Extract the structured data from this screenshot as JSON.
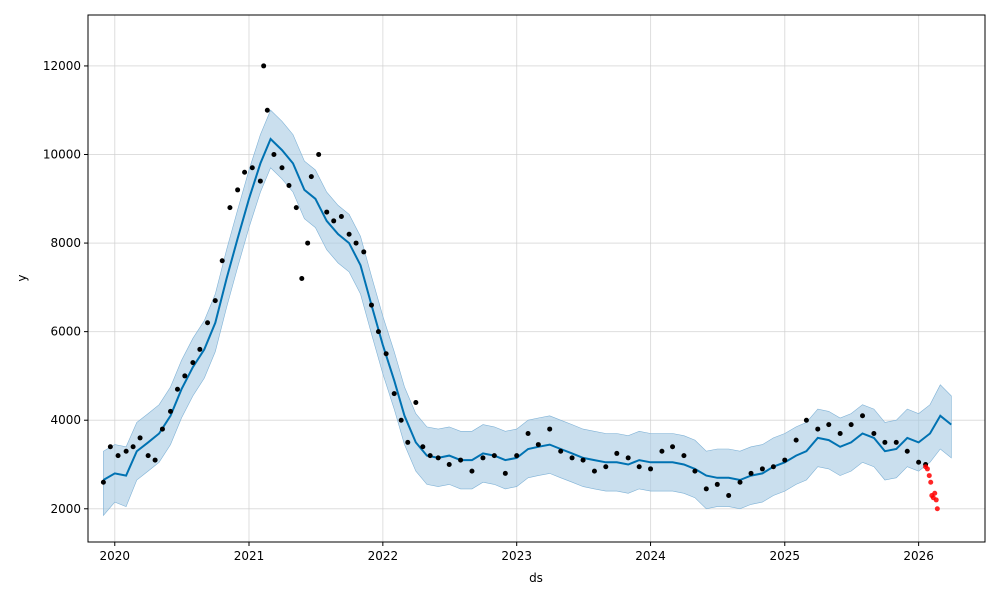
{
  "chart_data": {
    "type": "scatter",
    "title": "",
    "xlabel": "ds",
    "ylabel": "y",
    "xlim": [
      "2019-10-20",
      "2026-07-01"
    ],
    "ylim": [
      1250,
      13150
    ],
    "grid": true,
    "legend": "none",
    "xticks": [
      "2020",
      "2021",
      "2022",
      "2023",
      "2024",
      "2025",
      "2026"
    ],
    "yticks": [
      2000,
      4000,
      6000,
      8000,
      10000,
      12000
    ],
    "colors": {
      "observed": "#000000",
      "recent": "#ff0000",
      "forecast": "#0072b2",
      "interval": "#a6cae3"
    },
    "series": [
      {
        "role": "forecast",
        "x": [
          "2019-12-01",
          "2020-01-01",
          "2020-02-01",
          "2020-03-01",
          "2020-04-01",
          "2020-05-01",
          "2020-06-01",
          "2020-07-01",
          "2020-08-01",
          "2020-09-01",
          "2020-10-01",
          "2020-11-01",
          "2020-12-01",
          "2021-01-01",
          "2021-02-01",
          "2021-03-01",
          "2021-04-01",
          "2021-05-01",
          "2021-06-01",
          "2021-07-01",
          "2021-08-01",
          "2021-09-01",
          "2021-10-01",
          "2021-11-01",
          "2021-12-01",
          "2022-01-01",
          "2022-02-01",
          "2022-03-01",
          "2022-04-01",
          "2022-05-01",
          "2022-06-01",
          "2022-07-01",
          "2022-08-01",
          "2022-09-01",
          "2022-10-01",
          "2022-11-01",
          "2022-12-01",
          "2023-01-01",
          "2023-02-01",
          "2023-03-01",
          "2023-04-01",
          "2023-05-01",
          "2023-06-01",
          "2023-07-01",
          "2023-08-01",
          "2023-09-01",
          "2023-10-01",
          "2023-11-01",
          "2023-12-01",
          "2024-01-01",
          "2024-02-01",
          "2024-03-01",
          "2024-04-01",
          "2024-05-01",
          "2024-06-01",
          "2024-07-01",
          "2024-08-01",
          "2024-09-01",
          "2024-10-01",
          "2024-11-01",
          "2024-12-01",
          "2025-01-01",
          "2025-02-01",
          "2025-03-01",
          "2025-04-01",
          "2025-05-01",
          "2025-06-01",
          "2025-07-01",
          "2025-08-01",
          "2025-09-01",
          "2025-10-01",
          "2025-11-01",
          "2025-12-01",
          "2026-01-01",
          "2026-02-01",
          "2026-03-01",
          "2026-03-31"
        ],
        "y": [
          2650,
          2800,
          2750,
          3300,
          3500,
          3700,
          4100,
          4700,
          5200,
          5600,
          6200,
          7200,
          8100,
          9000,
          9800,
          10350,
          10100,
          9800,
          9200,
          9000,
          8500,
          8200,
          8000,
          7500,
          6600,
          5700,
          4900,
          4100,
          3500,
          3200,
          3150,
          3200,
          3100,
          3100,
          3250,
          3200,
          3100,
          3150,
          3350,
          3400,
          3450,
          3350,
          3250,
          3150,
          3100,
          3050,
          3050,
          3000,
          3100,
          3050,
          3050,
          3050,
          3000,
          2900,
          2750,
          2700,
          2700,
          2650,
          2750,
          2800,
          2950,
          3050,
          3200,
          3300,
          3600,
          3550,
          3400,
          3500,
          3700,
          3600,
          3300,
          3350,
          3600,
          3500,
          3700,
          4100,
          3900
        ]
      },
      {
        "role": "interval",
        "x": [
          "2019-12-01",
          "2020-01-01",
          "2020-02-01",
          "2020-03-01",
          "2020-04-01",
          "2020-05-01",
          "2020-06-01",
          "2020-07-01",
          "2020-08-01",
          "2020-09-01",
          "2020-10-01",
          "2020-11-01",
          "2020-12-01",
          "2021-01-01",
          "2021-02-01",
          "2021-03-01",
          "2021-04-01",
          "2021-05-01",
          "2021-06-01",
          "2021-07-01",
          "2021-08-01",
          "2021-09-01",
          "2021-10-01",
          "2021-11-01",
          "2021-12-01",
          "2022-01-01",
          "2022-02-01",
          "2022-03-01",
          "2022-04-01",
          "2022-05-01",
          "2022-06-01",
          "2022-07-01",
          "2022-08-01",
          "2022-09-01",
          "2022-10-01",
          "2022-11-01",
          "2022-12-01",
          "2023-01-01",
          "2023-02-01",
          "2023-03-01",
          "2023-04-01",
          "2023-05-01",
          "2023-06-01",
          "2023-07-01",
          "2023-08-01",
          "2023-09-01",
          "2023-10-01",
          "2023-11-01",
          "2023-12-01",
          "2024-01-01",
          "2024-02-01",
          "2024-03-01",
          "2024-04-01",
          "2024-05-01",
          "2024-06-01",
          "2024-07-01",
          "2024-08-01",
          "2024-09-01",
          "2024-10-01",
          "2024-11-01",
          "2024-12-01",
          "2025-01-01",
          "2025-02-01",
          "2025-03-01",
          "2025-04-01",
          "2025-05-01",
          "2025-06-01",
          "2025-07-01",
          "2025-08-01",
          "2025-09-01",
          "2025-10-01",
          "2025-11-01",
          "2025-12-01",
          "2026-01-01",
          "2026-02-01",
          "2026-03-01",
          "2026-03-31"
        ],
        "lower": [
          1850,
          2150,
          2050,
          2650,
          2850,
          3050,
          3450,
          4050,
          4550,
          4950,
          5550,
          6550,
          7450,
          8350,
          9150,
          9700,
          9450,
          9150,
          8550,
          8350,
          7850,
          7550,
          7350,
          6850,
          5950,
          5050,
          4250,
          3450,
          2850,
          2550,
          2500,
          2550,
          2450,
          2450,
          2600,
          2550,
          2450,
          2500,
          2700,
          2750,
          2800,
          2700,
          2600,
          2500,
          2450,
          2400,
          2400,
          2350,
          2450,
          2400,
          2400,
          2400,
          2350,
          2250,
          2000,
          2050,
          2050,
          2000,
          2100,
          2150,
          2300,
          2400,
          2550,
          2650,
          2950,
          2900,
          2750,
          2850,
          3050,
          2950,
          2650,
          2700,
          2950,
          2850,
          3050,
          3350,
          3150
        ],
        "upper": [
          3300,
          3450,
          3400,
          3950,
          4150,
          4350,
          4750,
          5350,
          5850,
          6250,
          6850,
          7850,
          8750,
          9650,
          10450,
          11000,
          10750,
          10450,
          9850,
          9650,
          9150,
          8850,
          8650,
          8150,
          7250,
          6350,
          5550,
          4750,
          4150,
          3850,
          3800,
          3850,
          3750,
          3750,
          3900,
          3850,
          3750,
          3800,
          4000,
          4050,
          4100,
          4000,
          3900,
          3800,
          3750,
          3700,
          3700,
          3650,
          3750,
          3700,
          3700,
          3700,
          3650,
          3550,
          3300,
          3350,
          3350,
          3300,
          3400,
          3450,
          3600,
          3700,
          3850,
          3950,
          4250,
          4200,
          4050,
          4150,
          4350,
          4250,
          3950,
          4000,
          4250,
          4150,
          4350,
          4800,
          4550
        ]
      },
      {
        "role": "observed",
        "x": [
          "2019-12-01",
          "2019-12-20",
          "2020-01-10",
          "2020-02-01",
          "2020-02-20",
          "2020-03-10",
          "2020-04-01",
          "2020-04-20",
          "2020-05-10",
          "2020-06-01",
          "2020-06-20",
          "2020-07-10",
          "2020-08-01",
          "2020-08-20",
          "2020-09-10",
          "2020-10-01",
          "2020-10-20",
          "2020-11-10",
          "2020-12-01",
          "2020-12-20",
          "2021-01-10",
          "2021-02-01",
          "2021-02-10",
          "2021-02-20",
          "2021-03-10",
          "2021-04-01",
          "2021-04-20",
          "2021-05-10",
          "2021-05-25",
          "2021-06-10",
          "2021-06-20",
          "2021-07-10",
          "2021-08-01",
          "2021-08-20",
          "2021-09-10",
          "2021-10-01",
          "2021-10-20",
          "2021-11-10",
          "2021-12-01",
          "2021-12-20",
          "2022-01-10",
          "2022-02-01",
          "2022-02-20",
          "2022-03-10",
          "2022-04-01",
          "2022-04-20",
          "2022-05-10",
          "2022-06-01",
          "2022-07-01",
          "2022-08-01",
          "2022-09-01",
          "2022-10-01",
          "2022-11-01",
          "2022-12-01",
          "2023-01-01",
          "2023-02-01",
          "2023-03-01",
          "2023-04-01",
          "2023-05-01",
          "2023-06-01",
          "2023-07-01",
          "2023-08-01",
          "2023-09-01",
          "2023-10-01",
          "2023-11-01",
          "2023-12-01",
          "2024-01-01",
          "2024-02-01",
          "2024-03-01",
          "2024-04-01",
          "2024-05-01",
          "2024-06-01",
          "2024-07-01",
          "2024-08-01",
          "2024-09-01",
          "2024-10-01",
          "2024-11-01",
          "2024-12-01",
          "2025-01-01",
          "2025-02-01",
          "2025-03-01",
          "2025-04-01",
          "2025-05-01",
          "2025-06-01",
          "2025-07-01",
          "2025-08-01",
          "2025-09-01",
          "2025-10-01",
          "2025-11-01",
          "2025-12-01",
          "2026-01-01",
          "2026-01-20"
        ],
        "y": [
          2600,
          3400,
          3200,
          3300,
          3400,
          3600,
          3200,
          3100,
          3800,
          4200,
          4700,
          5000,
          5300,
          5600,
          6200,
          6700,
          7600,
          8800,
          9200,
          9600,
          9700,
          9400,
          12000,
          11000,
          10000,
          9700,
          9300,
          8800,
          7200,
          8000,
          9500,
          10000,
          8700,
          8500,
          8600,
          8200,
          8000,
          7800,
          6600,
          6000,
          5500,
          4600,
          4000,
          3500,
          4400,
          3400,
          3200,
          3150,
          3000,
          3100,
          2850,
          3150,
          3200,
          2800,
          3200,
          3700,
          3450,
          3800,
          3300,
          3150,
          3100,
          2850,
          2950,
          3250,
          3150,
          2950,
          2900,
          3300,
          3400,
          3200,
          2850,
          2450,
          2550,
          2300,
          2600,
          2800,
          2900,
          2950,
          3100,
          3550,
          4000,
          3800,
          3900,
          3700,
          3900,
          4100,
          3700,
          3500,
          3500,
          3300,
          3050,
          3000
        ]
      },
      {
        "role": "recent",
        "x": [
          "2026-01-20",
          "2026-01-25",
          "2026-01-30",
          "2026-02-03",
          "2026-02-06",
          "2026-02-10",
          "2026-02-14",
          "2026-02-18",
          "2026-02-21"
        ],
        "y": [
          2950,
          2900,
          2750,
          2600,
          2300,
          2250,
          2350,
          2200,
          2000
        ]
      }
    ]
  }
}
